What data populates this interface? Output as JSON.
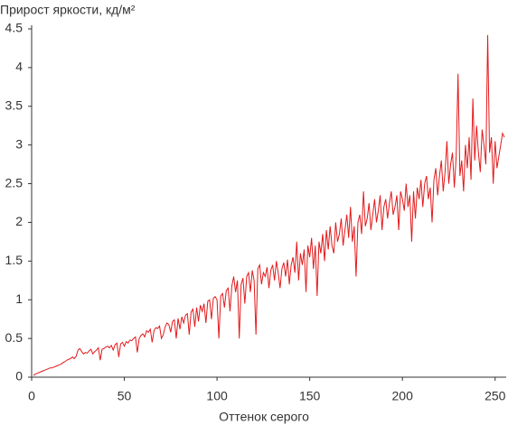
{
  "chart_data": {
    "type": "line",
    "title": "Прирост яркости, кд/м²",
    "x_label": "Оттенок серого",
    "xlim": [
      0,
      255
    ],
    "xticks": [
      0,
      50,
      100,
      150,
      200,
      250
    ],
    "ylim": [
      0,
      4.5
    ],
    "yticks": [
      0,
      0.5,
      1,
      1.5,
      2,
      2.5,
      3,
      3.5,
      4,
      4.5
    ],
    "grid": false,
    "x": [
      1,
      2,
      3,
      4,
      5,
      6,
      7,
      8,
      9,
      10,
      11,
      12,
      13,
      14,
      15,
      16,
      17,
      18,
      19,
      20,
      21,
      22,
      23,
      24,
      25,
      26,
      27,
      28,
      29,
      30,
      31,
      32,
      33,
      34,
      35,
      36,
      37,
      38,
      39,
      40,
      41,
      42,
      43,
      44,
      45,
      46,
      47,
      48,
      49,
      50,
      51,
      52,
      53,
      54,
      55,
      56,
      57,
      58,
      59,
      60,
      61,
      62,
      63,
      64,
      65,
      66,
      67,
      68,
      69,
      70,
      71,
      72,
      73,
      74,
      75,
      76,
      77,
      78,
      79,
      80,
      81,
      82,
      83,
      84,
      85,
      86,
      87,
      88,
      89,
      90,
      91,
      92,
      93,
      94,
      95,
      96,
      97,
      98,
      99,
      100,
      101,
      102,
      103,
      104,
      105,
      106,
      107,
      108,
      109,
      110,
      111,
      112,
      113,
      114,
      115,
      116,
      117,
      118,
      119,
      120,
      121,
      122,
      123,
      124,
      125,
      126,
      127,
      128,
      129,
      130,
      131,
      132,
      133,
      134,
      135,
      136,
      137,
      138,
      139,
      140,
      141,
      142,
      143,
      144,
      145,
      146,
      147,
      148,
      149,
      150,
      151,
      152,
      153,
      154,
      155,
      156,
      157,
      158,
      159,
      160,
      161,
      162,
      163,
      164,
      165,
      166,
      167,
      168,
      169,
      170,
      171,
      172,
      173,
      174,
      175,
      176,
      177,
      178,
      179,
      180,
      181,
      182,
      183,
      184,
      185,
      186,
      187,
      188,
      189,
      190,
      191,
      192,
      193,
      194,
      195,
      196,
      197,
      198,
      199,
      200,
      201,
      202,
      203,
      204,
      205,
      206,
      207,
      208,
      209,
      210,
      211,
      212,
      213,
      214,
      215,
      216,
      217,
      218,
      219,
      220,
      221,
      222,
      223,
      224,
      225,
      226,
      227,
      228,
      229,
      230,
      231,
      232,
      233,
      234,
      235,
      236,
      237,
      238,
      239,
      240,
      241,
      242,
      243,
      244,
      245,
      246,
      247,
      248,
      249,
      250,
      251,
      252,
      253,
      254,
      255
    ],
    "series": [
      {
        "color": "#e31a1c",
        "values": [
          0.02,
          0.04,
          0.05,
          0.06,
          0.07,
          0.08,
          0.09,
          0.1,
          0.11,
          0.12,
          0.12,
          0.13,
          0.14,
          0.15,
          0.16,
          0.17,
          0.19,
          0.2,
          0.22,
          0.23,
          0.24,
          0.26,
          0.24,
          0.27,
          0.35,
          0.37,
          0.33,
          0.3,
          0.32,
          0.31,
          0.34,
          0.36,
          0.3,
          0.33,
          0.35,
          0.38,
          0.22,
          0.36,
          0.37,
          0.39,
          0.4,
          0.38,
          0.41,
          0.35,
          0.42,
          0.44,
          0.26,
          0.43,
          0.45,
          0.4,
          0.46,
          0.44,
          0.48,
          0.47,
          0.5,
          0.52,
          0.32,
          0.5,
          0.54,
          0.56,
          0.52,
          0.6,
          0.58,
          0.62,
          0.45,
          0.6,
          0.64,
          0.63,
          0.66,
          0.5,
          0.55,
          0.65,
          0.7,
          0.68,
          0.58,
          0.72,
          0.74,
          0.5,
          0.76,
          0.62,
          0.78,
          0.7,
          0.8,
          0.82,
          0.55,
          0.84,
          0.88,
          0.65,
          0.9,
          0.72,
          0.93,
          0.85,
          0.95,
          0.7,
          0.98,
          1.0,
          0.75,
          1.02,
          1.04,
          1.0,
          0.5,
          1.05,
          1.08,
          0.9,
          1.12,
          1.15,
          0.85,
          1.18,
          1.3,
          1.1,
          1.25,
          0.5,
          1.2,
          1.28,
          0.95,
          1.3,
          1.35,
          1.1,
          1.38,
          1.25,
          0.55,
          1.4,
          1.45,
          1.2,
          1.35,
          1.3,
          1.42,
          1.15,
          1.38,
          1.45,
          1.25,
          1.5,
          1.35,
          1.15,
          1.4,
          1.48,
          1.3,
          1.52,
          1.2,
          1.45,
          1.55,
          1.35,
          1.75,
          1.25,
          1.6,
          1.45,
          1.65,
          1.1,
          1.7,
          1.55,
          1.8,
          1.4,
          1.7,
          1.05,
          1.75,
          1.6,
          1.85,
          1.5,
          1.9,
          1.65,
          1.95,
          1.7,
          1.6,
          2.0,
          1.75,
          1.85,
          2.05,
          1.7,
          1.9,
          2.1,
          1.8,
          2.2,
          1.75,
          1.95,
          1.3,
          2.0,
          2.1,
          1.85,
          2.4,
          1.95,
          2.05,
          2.25,
          1.9,
          2.1,
          2.3,
          2.0,
          2.15,
          2.35,
          1.9,
          2.2,
          2.3,
          2.05,
          2.25,
          2.4,
          2.1,
          2.2,
          2.35,
          1.9,
          2.4,
          2.3,
          2.15,
          2.5,
          2.2,
          2.35,
          1.75,
          2.4,
          2.05,
          2.45,
          2.3,
          2.55,
          2.2,
          2.5,
          2.6,
          2.3,
          2.45,
          2.0,
          2.55,
          2.7,
          2.35,
          2.6,
          2.8,
          2.4,
          2.65,
          3.05,
          2.5,
          2.75,
          2.9,
          2.45,
          2.85,
          3.92,
          2.6,
          2.8,
          2.4,
          3.0,
          2.7,
          3.1,
          2.55,
          3.6,
          2.8,
          3.25,
          2.9,
          2.65,
          3.2,
          3.0,
          2.75,
          4.42,
          2.9,
          3.1,
          2.5,
          3.05,
          2.7,
          2.85,
          3.0,
          3.15,
          3.1
        ]
      }
    ]
  }
}
